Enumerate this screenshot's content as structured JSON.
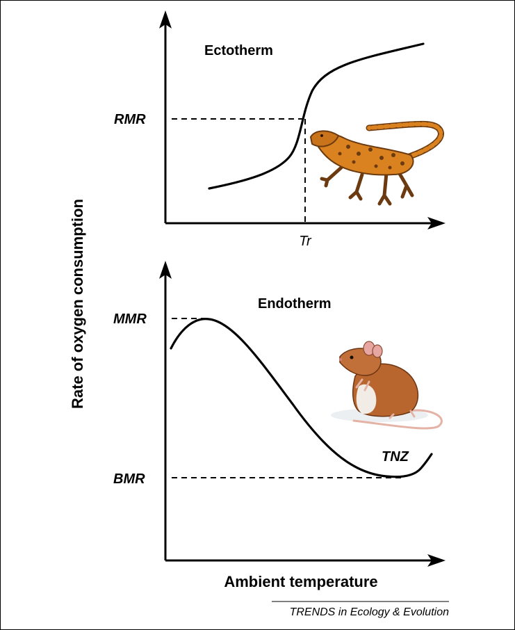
{
  "y_axis_label": "Rate of oxygen consumption",
  "x_axis_label": "Ambient temperature",
  "credit": "TRENDS in Ecology & Evolution",
  "ectotherm": {
    "title": "Ectotherm",
    "rmr_label": "RMR",
    "tr_label": "Tr",
    "animal_icon": "lizard-icon"
  },
  "endotherm": {
    "title": "Endotherm",
    "mmr_label": "MMR",
    "bmr_label": "BMR",
    "tnz_label": "TNZ",
    "animal_icon": "mouse-icon"
  },
  "colors": {
    "lizard_body": "#d9821f",
    "lizard_dark": "#6b3a10",
    "mouse_body": "#b8652e",
    "mouse_belly": "#f1ece6",
    "mouse_ear": "#e7a6a1"
  }
}
